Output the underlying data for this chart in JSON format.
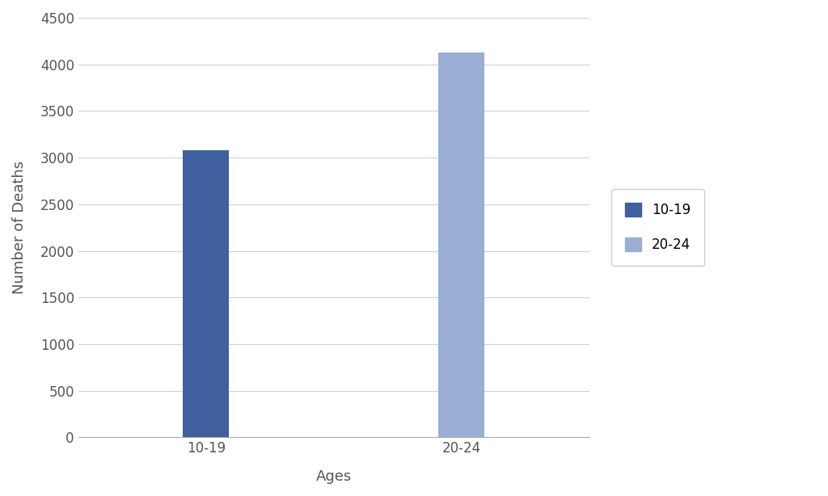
{
  "categories": [
    "10-19",
    "20-24"
  ],
  "values": [
    3080,
    4130
  ],
  "bar_colors": [
    "#3F5F9E",
    "#9BAFD4"
  ],
  "legend_labels": [
    "10-19",
    "20-24"
  ],
  "xlabel": "Ages",
  "ylabel": "Number of Deaths",
  "ylim": [
    0,
    4500
  ],
  "yticks": [
    0,
    500,
    1000,
    1500,
    2000,
    2500,
    3000,
    3500,
    4000,
    4500
  ],
  "background_color": "#ffffff",
  "grid_color": "#d0d0d0",
  "bar_width": 0.18,
  "axis_label_fontsize": 13,
  "tick_fontsize": 12
}
